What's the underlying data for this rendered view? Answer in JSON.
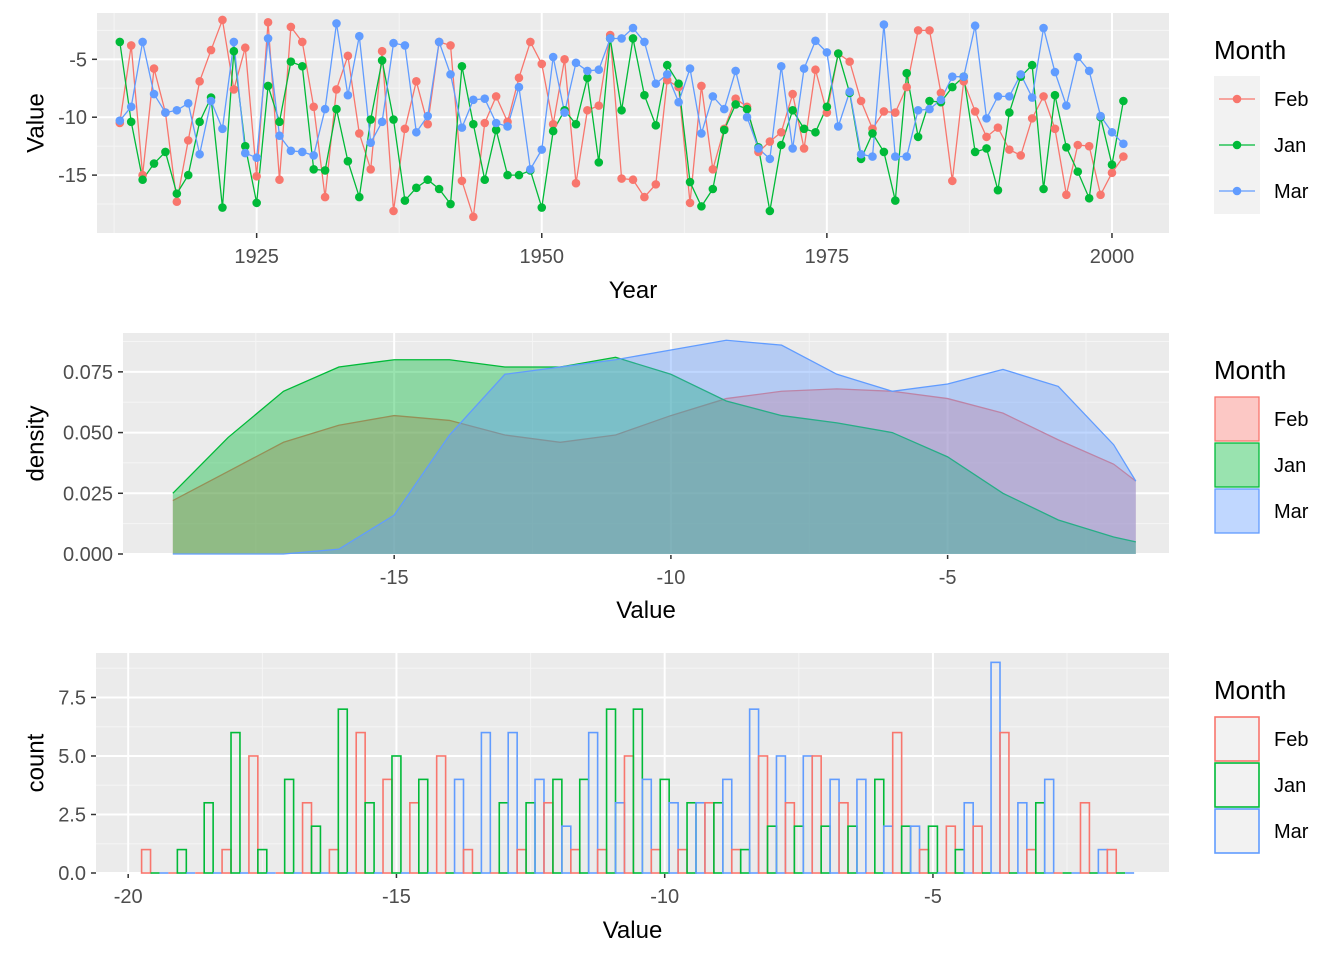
{
  "legend_title": "Month",
  "months": [
    "Feb",
    "Jan",
    "Mar"
  ],
  "colors": {
    "Feb": "#F8766D",
    "Jan": "#00BA38",
    "Mar": "#619CFF"
  },
  "chart_data": [
    {
      "type": "line",
      "panel": "timeseries",
      "xlabel": "Year",
      "ylabel": "Value",
      "xlim": [
        1911,
        2005
      ],
      "ylim": [
        -20,
        -1
      ],
      "x_ticks": [
        1925,
        1950,
        1975,
        2000
      ],
      "y_ticks": [
        -15,
        -10,
        -5
      ],
      "grid": true,
      "legend_position": "right",
      "x": [
        1913,
        1914,
        1915,
        1916,
        1917,
        1918,
        1919,
        1920,
        1921,
        1922,
        1923,
        1924,
        1925,
        1926,
        1927,
        1928,
        1929,
        1930,
        1931,
        1932,
        1933,
        1934,
        1935,
        1936,
        1937,
        1938,
        1939,
        1940,
        1941,
        1942,
        1943,
        1944,
        1945,
        1946,
        1947,
        1948,
        1949,
        1950,
        1951,
        1952,
        1953,
        1954,
        1955,
        1956,
        1957,
        1958,
        1959,
        1960,
        1961,
        1962,
        1963,
        1964,
        1965,
        1966,
        1967,
        1968,
        1969,
        1970,
        1971,
        1972,
        1973,
        1974,
        1975,
        1976,
        1977,
        1978,
        1979,
        1980,
        1981,
        1982,
        1983,
        1984,
        1985,
        1986,
        1987,
        1988,
        1989,
        1990,
        1991,
        1992,
        1993,
        1994,
        1995,
        1996,
        1997,
        1998,
        1999,
        2000,
        2001
      ],
      "series": [
        {
          "name": "Feb",
          "values": [
            -10.5,
            -3.8,
            -15.0,
            -5.8,
            -9.6,
            -17.3,
            -12.0,
            -6.9,
            -4.2,
            -1.6,
            -7.6,
            -4.0,
            -15.1,
            -1.8,
            -15.4,
            -2.2,
            -3.5,
            -9.1,
            -16.9,
            -7.6,
            -4.7,
            -11.4,
            -14.5,
            -4.3,
            -18.1,
            -11.0,
            -6.9,
            -10.6,
            -3.5,
            -3.8,
            -15.5,
            -18.6,
            -10.5,
            -8.2,
            -10.4,
            -6.6,
            -3.5,
            -5.4,
            -10.6,
            -5.0,
            -15.7,
            -9.4,
            -9.0,
            -2.9,
            -15.3,
            -15.4,
            -16.9,
            -15.8,
            -6.8,
            -7.4,
            -17.4,
            -7.3,
            -14.5,
            -11.0,
            -8.4,
            -9.1,
            -13.0,
            -12.1,
            -11.3,
            -8.0,
            -12.7,
            -5.9,
            -9.6,
            -4.5,
            -5.2,
            -8.6,
            -11.0,
            -9.5,
            -9.6,
            -7.4,
            -2.5,
            -2.5,
            -7.9,
            -15.5,
            -6.9,
            -9.5,
            -11.7,
            -10.9,
            -12.8,
            -13.3,
            -10.1,
            -8.2,
            -11.0,
            -16.7,
            -12.4,
            -12.5,
            -16.7,
            -14.8,
            -13.4
          ]
        },
        {
          "name": "Jan",
          "values": [
            -3.5,
            -10.4,
            -15.4,
            -14.0,
            -13.0,
            -16.6,
            -15.0,
            -10.4,
            -8.3,
            -17.8,
            -4.3,
            -12.5,
            -17.4,
            -7.3,
            -10.4,
            -5.2,
            -5.6,
            -14.5,
            -14.6,
            -9.3,
            -13.8,
            -16.9,
            -10.2,
            -5.1,
            -10.2,
            -17.2,
            -16.1,
            -15.4,
            -16.2,
            -17.5,
            -5.6,
            -10.6,
            -15.4,
            -11.1,
            -15.0,
            -15.0,
            -14.6,
            -17.8,
            -11.2,
            -9.4,
            -10.6,
            -6.6,
            -13.9,
            -3.2,
            -9.4,
            -3.2,
            -8.1,
            -10.7,
            -5.5,
            -7.1,
            -15.6,
            -17.7,
            -16.2,
            -11.1,
            -8.9,
            -9.3,
            -12.6,
            -18.1,
            -12.4,
            -9.4,
            -11.0,
            -11.3,
            -9.1,
            -4.5,
            -7.9,
            -13.6,
            -11.4,
            -13.0,
            -17.2,
            -6.2,
            -11.7,
            -8.6,
            -8.7,
            -7.4,
            -6.5,
            -13.0,
            -12.7,
            -16.3,
            -9.6,
            -6.5,
            -5.5,
            -16.2,
            -8.1,
            -12.6,
            -14.7,
            -17.0,
            -10.0,
            -14.1,
            -8.6
          ]
        },
        {
          "name": "Mar",
          "values": [
            -10.3,
            -9.1,
            -3.5,
            -8.0,
            -9.6,
            -9.4,
            -8.8,
            -13.2,
            -8.6,
            -11.0,
            -3.5,
            -13.1,
            -13.5,
            -3.2,
            -11.6,
            -12.9,
            -13.0,
            -13.3,
            -9.3,
            -1.9,
            -8.1,
            -3.0,
            -12.2,
            -10.4,
            -3.6,
            -3.8,
            -11.3,
            -9.9,
            -3.5,
            -6.3,
            -10.9,
            -8.5,
            -8.4,
            -10.5,
            -10.8,
            -7.4,
            -14.5,
            -12.8,
            -4.8,
            -9.6,
            -5.3,
            -6.0,
            -5.9,
            -3.2,
            -3.2,
            -2.3,
            -3.5,
            -7.1,
            -6.3,
            -8.7,
            -5.8,
            -11.4,
            -8.2,
            -9.3,
            -6.0,
            -10.0,
            -12.7,
            -13.6,
            -5.6,
            -12.7,
            -5.8,
            -3.4,
            -4.4,
            -10.8,
            -7.8,
            -13.2,
            -13.4,
            -2.0,
            -13.4,
            -13.4,
            -9.4,
            -9.3,
            -8.5,
            -6.5,
            -6.5,
            -2.1,
            -10.1,
            -8.2,
            -8.2,
            -6.3,
            -8.3,
            -2.3,
            -6.1,
            -9.0,
            -4.8,
            -6.0,
            -9.9,
            -11.3,
            -12.3
          ]
        }
      ]
    },
    {
      "type": "area",
      "panel": "density",
      "xlabel": "Value",
      "ylabel": "density",
      "xlim": [
        -19.9,
        -1.0
      ],
      "ylim": [
        0,
        0.091
      ],
      "x_ticks": [
        -15,
        -10,
        -5
      ],
      "y_ticks": [
        0.0,
        0.025,
        0.05,
        0.075
      ],
      "y_tick_labels": [
        "0.000",
        "0.025",
        "0.050",
        "0.075"
      ],
      "grid": true,
      "legend_position": "right",
      "x": [
        -19.0,
        -18.0,
        -17.0,
        -16.0,
        -15.0,
        -14.0,
        -13.0,
        -12.0,
        -11.0,
        -10.0,
        -9.0,
        -8.0,
        -7.0,
        -6.0,
        -5.0,
        -4.0,
        -3.0,
        -2.0,
        -1.6
      ],
      "series": [
        {
          "name": "Feb",
          "values": [
            0.022,
            0.034,
            0.046,
            0.053,
            0.057,
            0.055,
            0.049,
            0.046,
            0.049,
            0.057,
            0.064,
            0.067,
            0.068,
            0.067,
            0.064,
            0.058,
            0.047,
            0.037,
            0.03
          ]
        },
        {
          "name": "Jan",
          "values": [
            0.025,
            0.048,
            0.067,
            0.077,
            0.08,
            0.08,
            0.077,
            0.077,
            0.081,
            0.074,
            0.063,
            0.057,
            0.054,
            0.05,
            0.04,
            0.025,
            0.014,
            0.007,
            0.005
          ]
        },
        {
          "name": "Mar",
          "values": [
            0.0,
            0.0,
            0.0,
            0.002,
            0.016,
            0.049,
            0.074,
            0.077,
            0.08,
            0.084,
            0.088,
            0.086,
            0.074,
            0.067,
            0.07,
            0.076,
            0.069,
            0.045,
            0.03
          ]
        }
      ]
    },
    {
      "type": "bar",
      "panel": "histogram",
      "xlabel": "Value",
      "ylabel": "count",
      "xlim": [
        -20.6,
        -0.6
      ],
      "ylim": [
        0,
        9.4
      ],
      "x_ticks": [
        -20,
        -15,
        -10,
        -5
      ],
      "y_ticks": [
        0.0,
        2.5,
        5.0,
        7.5
      ],
      "y_tick_labels": [
        "0.0",
        "2.5",
        "5.0",
        "7.5"
      ],
      "grid": true,
      "legend_position": "right",
      "bin_width": 0.5,
      "categories": [
        -19.5,
        -19.0,
        -18.5,
        -18.0,
        -17.5,
        -17.0,
        -16.5,
        -16.0,
        -15.5,
        -15.0,
        -14.5,
        -14.0,
        -13.5,
        -13.0,
        -12.5,
        -12.0,
        -11.5,
        -11.0,
        -10.5,
        -10.0,
        -9.5,
        -9.0,
        -8.5,
        -8.0,
        -7.5,
        -7.0,
        -6.5,
        -6.0,
        -5.5,
        -5.0,
        -4.5,
        -4.0,
        -3.5,
        -3.0,
        -2.5,
        -2.0,
        -1.5
      ],
      "series": [
        {
          "name": "Feb",
          "values": [
            1,
            0,
            0,
            1,
            5,
            0,
            3,
            1,
            6,
            4,
            3,
            5,
            1,
            0,
            1,
            3,
            1,
            1,
            5,
            1,
            1,
            3,
            1,
            5,
            3,
            5,
            3,
            0,
            6,
            1,
            2,
            2,
            6,
            1,
            0,
            3,
            1
          ]
        },
        {
          "name": "Jan",
          "values": [
            0,
            1,
            3,
            6,
            1,
            4,
            2,
            7,
            3,
            5,
            4,
            0,
            0,
            3,
            3,
            4,
            4,
            7,
            7,
            4,
            3,
            3,
            1,
            2,
            2,
            2,
            2,
            4,
            2,
            2,
            1,
            0,
            0,
            3,
            0,
            0,
            0
          ]
        },
        {
          "name": "Mar",
          "values": [
            0,
            0,
            0,
            0,
            0,
            0,
            0,
            0,
            0,
            0,
            0,
            4,
            6,
            6,
            4,
            2,
            6,
            3,
            4,
            3,
            3,
            4,
            7,
            5,
            5,
            4,
            4,
            2,
            2,
            0,
            3,
            9,
            3,
            4,
            0,
            1,
            0
          ]
        }
      ]
    }
  ]
}
